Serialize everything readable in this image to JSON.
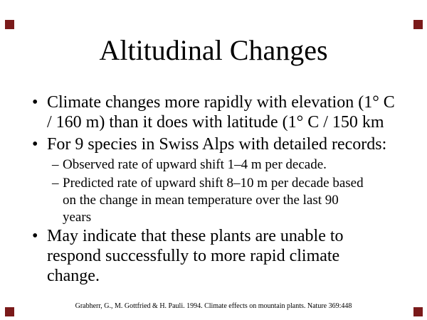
{
  "slide": {
    "title": "Altitudinal Changes",
    "bullets": [
      {
        "level": 1,
        "marker": "•",
        "lines": [
          "Climate changes more rapidly with elevation (1° C",
          "/ 160 m) than it does with latitude (1° C / 150 km"
        ]
      },
      {
        "level": 1,
        "marker": "•",
        "lines": [
          "For 9 species in Swiss Alps with detailed records:"
        ]
      },
      {
        "level": 2,
        "marker": "–",
        "lines": [
          "Observed rate of upward shift 1–4 m per decade."
        ]
      },
      {
        "level": 2,
        "marker": "–",
        "lines": [
          "Predicted rate of upward shift 8–10 m per decade based",
          "on the change in mean temperature over the last 90",
          "years"
        ]
      },
      {
        "level": 1,
        "marker": "•",
        "lines": [
          "May indicate that these plants are unable to",
          "respond successfully to more rapid climate",
          "change."
        ]
      }
    ],
    "citation": "Grabherr, G., M. Gottfried & H. Pauli. 1994. Climate effects on mountain plants. Nature 369:448",
    "colors": {
      "background": "#ffffff",
      "text": "#000000",
      "corner_marker": "#7a1a1a"
    }
  }
}
